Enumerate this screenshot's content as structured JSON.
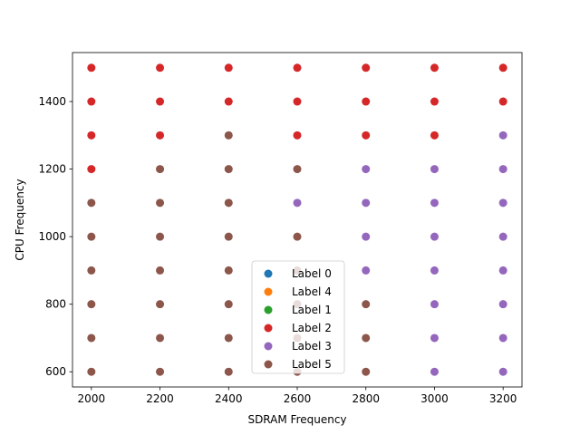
{
  "chart_data": {
    "type": "scatter",
    "title": "",
    "xlabel": "SDRAM Frequency",
    "ylabel": "CPU Frequency",
    "xlim": [
      1945,
      3255
    ],
    "ylim": [
      555,
      1545
    ],
    "xticks": [
      2000,
      2200,
      2400,
      2600,
      2800,
      3000,
      3200
    ],
    "yticks": [
      600,
      800,
      1000,
      1200,
      1400
    ],
    "legend_position": "lower center",
    "series": [
      {
        "name": "Label 0",
        "color": "#1f77b4",
        "points": []
      },
      {
        "name": "Label 4",
        "color": "#ff7f0e",
        "points": []
      },
      {
        "name": "Label 1",
        "color": "#2ca02c",
        "points": []
      },
      {
        "name": "Label 2",
        "color": "#d62728",
        "points": [
          [
            2000,
            1200
          ],
          [
            2000,
            1300
          ],
          [
            2000,
            1400
          ],
          [
            2000,
            1500
          ],
          [
            2200,
            1300
          ],
          [
            2200,
            1400
          ],
          [
            2200,
            1500
          ],
          [
            2400,
            1400
          ],
          [
            2400,
            1500
          ],
          [
            2600,
            1300
          ],
          [
            2600,
            1400
          ],
          [
            2600,
            1500
          ],
          [
            2800,
            1300
          ],
          [
            2800,
            1400
          ],
          [
            2800,
            1500
          ],
          [
            3000,
            1300
          ],
          [
            3000,
            1400
          ],
          [
            3000,
            1500
          ],
          [
            3200,
            1400
          ],
          [
            3200,
            1500
          ]
        ]
      },
      {
        "name": "Label 3",
        "color": "#9467bd",
        "points": [
          [
            2600,
            1100
          ],
          [
            2800,
            900
          ],
          [
            2800,
            1000
          ],
          [
            2800,
            1100
          ],
          [
            2800,
            1200
          ],
          [
            3000,
            600
          ],
          [
            3000,
            700
          ],
          [
            3000,
            800
          ],
          [
            3000,
            900
          ],
          [
            3000,
            1000
          ],
          [
            3000,
            1100
          ],
          [
            3000,
            1200
          ],
          [
            3200,
            600
          ],
          [
            3200,
            700
          ],
          [
            3200,
            800
          ],
          [
            3200,
            900
          ],
          [
            3200,
            1000
          ],
          [
            3200,
            1100
          ],
          [
            3200,
            1200
          ],
          [
            3200,
            1300
          ]
        ]
      },
      {
        "name": "Label 5",
        "color": "#8c564b",
        "points": [
          [
            2000,
            600
          ],
          [
            2000,
            700
          ],
          [
            2000,
            800
          ],
          [
            2000,
            900
          ],
          [
            2000,
            1000
          ],
          [
            2000,
            1100
          ],
          [
            2200,
            600
          ],
          [
            2200,
            700
          ],
          [
            2200,
            800
          ],
          [
            2200,
            900
          ],
          [
            2200,
            1000
          ],
          [
            2200,
            1100
          ],
          [
            2200,
            1200
          ],
          [
            2400,
            600
          ],
          [
            2400,
            700
          ],
          [
            2400,
            800
          ],
          [
            2400,
            900
          ],
          [
            2400,
            1000
          ],
          [
            2400,
            1100
          ],
          [
            2400,
            1200
          ],
          [
            2400,
            1300
          ],
          [
            2600,
            600
          ],
          [
            2600,
            700
          ],
          [
            2600,
            800
          ],
          [
            2600,
            900
          ],
          [
            2600,
            1000
          ],
          [
            2600,
            1200
          ],
          [
            2800,
            600
          ],
          [
            2800,
            700
          ],
          [
            2800,
            800
          ]
        ]
      }
    ]
  }
}
